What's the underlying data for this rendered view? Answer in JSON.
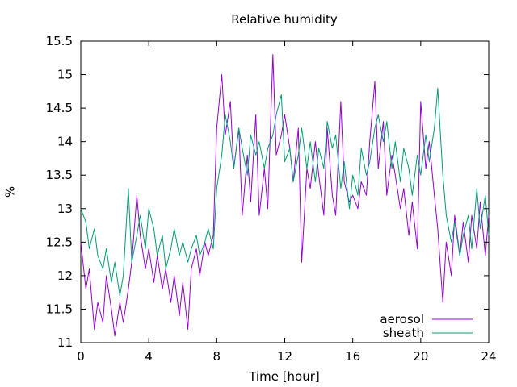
{
  "chart_data": {
    "type": "line",
    "title": "Relative humidity",
    "xlabel": "Time [hour]",
    "ylabel": "%",
    "xlim": [
      0,
      24
    ],
    "ylim": [
      11,
      15.5
    ],
    "xticks": [
      0,
      4,
      8,
      12,
      16,
      20,
      24
    ],
    "xtick_labels": [
      "0",
      "4",
      "8",
      "12",
      "16",
      "20",
      "24"
    ],
    "yticks": [
      11,
      11.5,
      12,
      12.5,
      13,
      13.5,
      14,
      14.5,
      15,
      15.5
    ],
    "ytick_labels": [
      "11",
      "11.5",
      "12",
      "12.5",
      "13",
      "13.5",
      "14",
      "14.5",
      "15",
      "15.5"
    ],
    "grid": false,
    "legend_position": "bottom-right",
    "series": [
      {
        "name": "aerosol",
        "color": "#9400d3",
        "x": [
          0,
          0.3,
          0.5,
          0.8,
          1.0,
          1.3,
          1.5,
          1.8,
          2.0,
          2.3,
          2.5,
          2.8,
          3.0,
          3.3,
          3.5,
          3.8,
          4.0,
          4.3,
          4.5,
          4.8,
          5.0,
          5.3,
          5.5,
          5.8,
          6.0,
          6.3,
          6.5,
          6.8,
          7.0,
          7.3,
          7.5,
          7.8,
          8.0,
          8.3,
          8.5,
          8.8,
          9.0,
          9.3,
          9.5,
          9.8,
          10.0,
          10.3,
          10.5,
          10.8,
          11.0,
          11.3,
          11.5,
          11.8,
          12.0,
          12.3,
          12.5,
          12.8,
          13.0,
          13.3,
          13.5,
          13.8,
          14.0,
          14.3,
          14.5,
          14.8,
          15.0,
          15.3,
          15.5,
          15.8,
          16.0,
          16.3,
          16.5,
          16.8,
          17.0,
          17.3,
          17.5,
          17.8,
          18.0,
          18.3,
          18.5,
          18.8,
          19.0,
          19.3,
          19.5,
          19.8,
          20.0,
          20.3,
          20.5,
          20.8,
          21.0,
          21.3,
          21.5,
          21.8,
          22.0,
          22.3,
          22.5,
          22.8,
          23.0,
          23.3,
          23.5,
          23.8,
          24.0
        ],
        "y": [
          12.5,
          11.8,
          12.1,
          11.2,
          11.6,
          11.3,
          12.0,
          11.5,
          11.1,
          11.6,
          11.3,
          11.8,
          12.2,
          13.2,
          12.6,
          12.1,
          12.4,
          11.9,
          12.3,
          11.8,
          12.1,
          11.6,
          12.0,
          11.4,
          11.9,
          11.2,
          12.1,
          12.4,
          12.0,
          12.5,
          12.3,
          12.6,
          14.2,
          15.0,
          14.1,
          14.6,
          13.6,
          14.2,
          12.9,
          13.8,
          13.1,
          14.4,
          12.9,
          13.6,
          13.0,
          15.3,
          13.8,
          14.1,
          14.4,
          13.9,
          13.4,
          14.2,
          12.2,
          13.6,
          13.3,
          14.0,
          13.5,
          12.9,
          14.2,
          13.2,
          12.9,
          14.6,
          13.4,
          13.1,
          13.2,
          13.0,
          13.4,
          13.2,
          14.0,
          14.9,
          13.6,
          14.3,
          13.2,
          13.8,
          13.5,
          13.0,
          13.3,
          12.6,
          13.1,
          12.4,
          14.6,
          13.6,
          14.0,
          13.2,
          12.7,
          11.6,
          12.5,
          12.0,
          12.9,
          12.3,
          12.8,
          12.2,
          12.9,
          12.4,
          13.1,
          12.3,
          12.9
        ]
      },
      {
        "name": "sheath",
        "color": "#009e73",
        "x": [
          0,
          0.3,
          0.5,
          0.8,
          1.0,
          1.3,
          1.5,
          1.8,
          2.0,
          2.3,
          2.5,
          2.8,
          3.0,
          3.3,
          3.5,
          3.8,
          4.0,
          4.3,
          4.5,
          4.8,
          5.0,
          5.3,
          5.5,
          5.8,
          6.0,
          6.3,
          6.5,
          6.8,
          7.0,
          7.3,
          7.5,
          7.8,
          8.0,
          8.3,
          8.5,
          8.8,
          9.0,
          9.3,
          9.5,
          9.8,
          10.0,
          10.3,
          10.5,
          10.8,
          11.0,
          11.3,
          11.5,
          11.8,
          12.0,
          12.3,
          12.5,
          12.8,
          13.0,
          13.3,
          13.5,
          13.8,
          14.0,
          14.3,
          14.5,
          14.8,
          15.0,
          15.3,
          15.5,
          15.8,
          16.0,
          16.3,
          16.5,
          16.8,
          17.0,
          17.3,
          17.5,
          17.8,
          18.0,
          18.3,
          18.5,
          18.8,
          19.0,
          19.3,
          19.5,
          19.8,
          20.0,
          20.3,
          20.5,
          20.8,
          21.0,
          21.3,
          21.5,
          21.8,
          22.0,
          22.3,
          22.5,
          22.8,
          23.0,
          23.3,
          23.5,
          23.8,
          24.0
        ],
        "y": [
          13.0,
          12.8,
          12.4,
          12.7,
          12.3,
          12.1,
          12.4,
          11.9,
          12.2,
          11.7,
          12.0,
          13.3,
          12.2,
          12.6,
          12.9,
          12.4,
          13.0,
          12.7,
          12.3,
          12.6,
          12.1,
          12.4,
          12.7,
          12.3,
          12.5,
          12.2,
          12.4,
          12.6,
          12.3,
          12.5,
          12.7,
          12.4,
          13.3,
          13.8,
          14.4,
          14.0,
          13.6,
          14.2,
          13.9,
          13.5,
          14.1,
          13.8,
          14.0,
          13.6,
          13.9,
          14.1,
          14.4,
          14.7,
          13.7,
          13.9,
          13.4,
          13.8,
          14.2,
          13.6,
          14.0,
          13.4,
          13.9,
          13.6,
          14.3,
          13.9,
          14.1,
          13.3,
          13.7,
          13.0,
          13.5,
          13.2,
          13.9,
          13.5,
          13.7,
          14.2,
          14.4,
          14.0,
          14.3,
          13.6,
          14.0,
          13.4,
          13.9,
          13.6,
          13.2,
          13.8,
          13.5,
          14.1,
          13.7,
          14.2,
          14.8,
          13.5,
          12.9,
          12.5,
          12.8,
          12.3,
          12.6,
          12.9,
          12.4,
          13.3,
          12.7,
          13.2,
          12.6
        ]
      }
    ]
  }
}
